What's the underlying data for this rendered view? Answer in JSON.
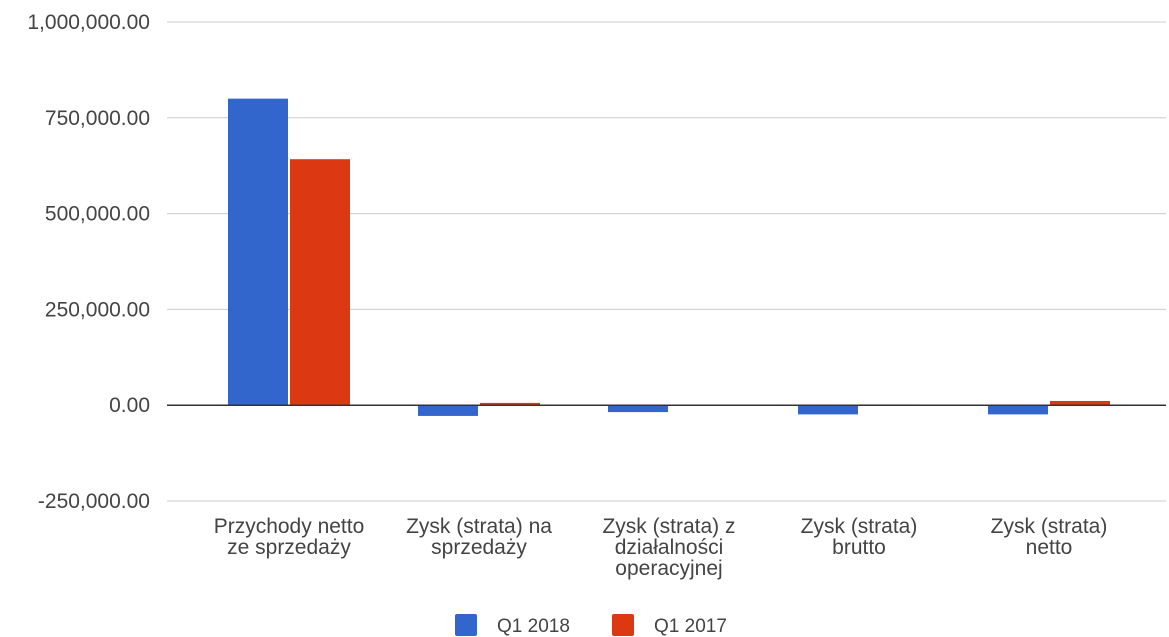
{
  "chart_data": {
    "type": "bar",
    "categories": [
      "Przychody netto ze sprzedaży",
      "Zysk (strata) na sprzedaży",
      "Zysk (strata) z działalności operacyjnej",
      "Zysk (strata) brutto",
      "Zysk (strata) netto"
    ],
    "category_label_lines": [
      [
        "Przychody netto",
        "ze sprzedaży"
      ],
      [
        "Zysk (strata) na",
        "sprzedaży"
      ],
      [
        "Zysk (strata) z",
        "działalności",
        "operacyjnej"
      ],
      [
        "Zysk (strata)",
        "brutto"
      ],
      [
        "Zysk (strata)",
        "netto"
      ]
    ],
    "series": [
      {
        "name": "Q1 2018",
        "color": "#3366cc",
        "values": [
          800000,
          -28000,
          -18000,
          -24000,
          -24000
        ]
      },
      {
        "name": "Q1 2017",
        "color": "#dc3912",
        "values": [
          642000,
          6000,
          0,
          2000,
          11000
        ]
      }
    ],
    "ylim": [
      -250000,
      1000000
    ],
    "yticks": [
      -250000,
      0,
      250000,
      500000,
      750000,
      1000000
    ],
    "ytick_labels": [
      "-250,000.00",
      "0.00",
      "250,000.00",
      "500,000.00",
      "750,000.00",
      "1,000,000.00"
    ],
    "title": "",
    "xlabel": "",
    "ylabel": "",
    "grid": true,
    "legend_position": "bottom"
  }
}
